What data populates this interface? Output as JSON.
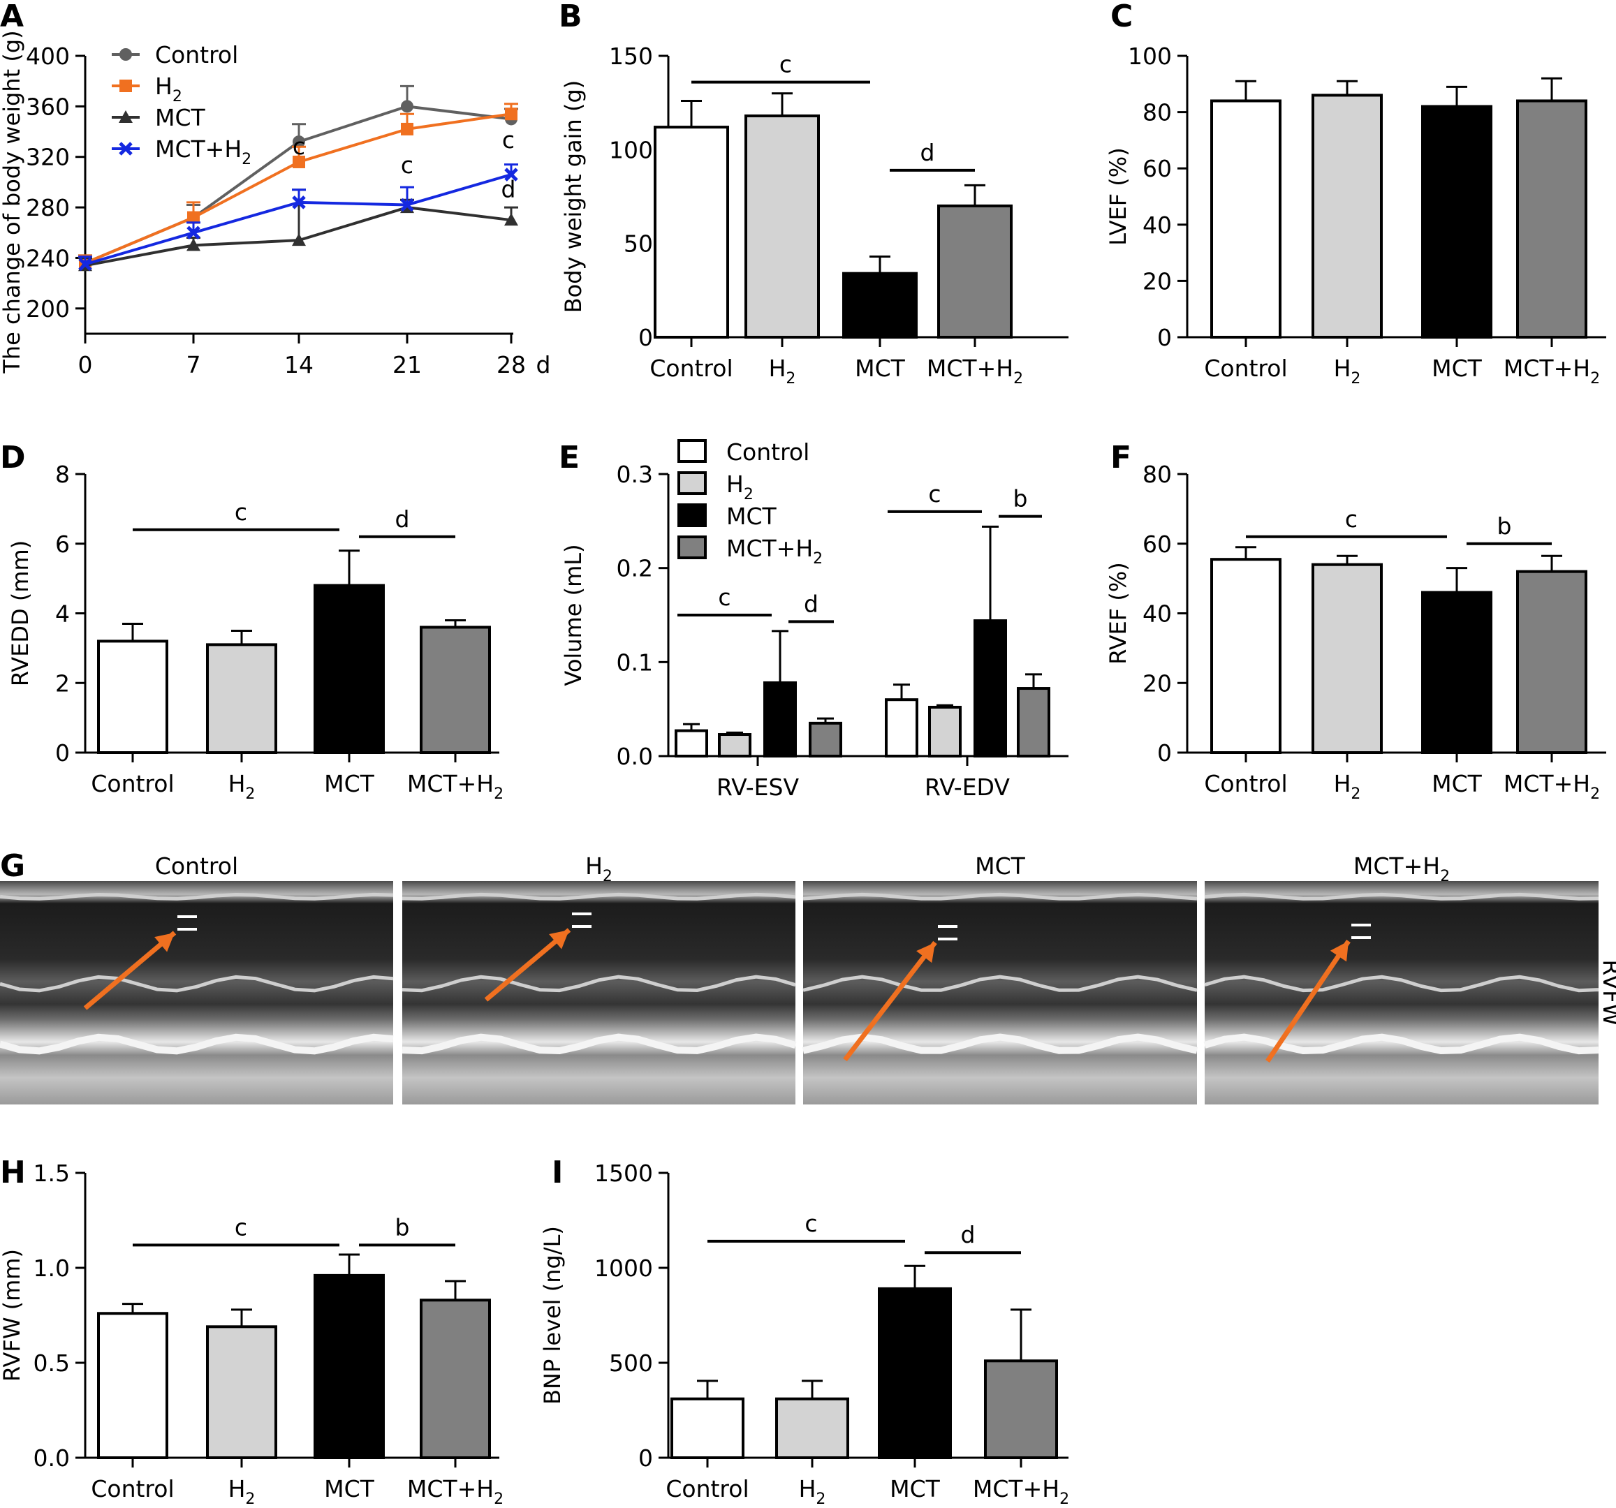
{
  "figure": {
    "groups": [
      "Control",
      "H2",
      "MCT",
      "MCT+H2"
    ],
    "panel_labels": [
      "A",
      "B",
      "C",
      "D",
      "E",
      "F",
      "G",
      "H",
      "I"
    ],
    "colors": {
      "Control": "#ffffff",
      "H2": "#d3d3d3",
      "MCT": "#000000",
      "MCT+H2": "#808080",
      "line_Control": "#606060",
      "line_H2": "#f07020",
      "line_MCT": "#303030",
      "line_MCT+H2": "#1428e0",
      "arrow": "#f07020"
    },
    "echo": {
      "titles": [
        "Control",
        "H2",
        "MCT",
        "MCT+H2"
      ],
      "side_label": "RVFW"
    }
  },
  "chart_data": [
    {
      "panel": "A",
      "type": "line",
      "x": [
        0,
        7,
        14,
        21,
        28
      ],
      "x_unit": "d",
      "xlim": [
        0,
        28
      ],
      "ylim": [
        180,
        400
      ],
      "yticks": [
        200,
        240,
        280,
        320,
        360,
        400
      ],
      "ylabel": "The change of body weight (g)",
      "legend": "top-left",
      "series": [
        {
          "name": "Control",
          "values": [
            236,
            272,
            332,
            360,
            350
          ],
          "err": [
            6,
            10,
            14,
            16,
            8
          ],
          "marker": "circle"
        },
        {
          "name": "H2",
          "values": [
            236,
            272,
            316,
            342,
            354
          ],
          "err": [
            6,
            12,
            12,
            12,
            8
          ],
          "marker": "square"
        },
        {
          "name": "MCT",
          "values": [
            234,
            250,
            254,
            280,
            270
          ],
          "err": [
            6,
            6,
            40,
            6,
            10
          ],
          "marker": "triangle"
        },
        {
          "name": "MCT+H2",
          "values": [
            235,
            260,
            284,
            282,
            306
          ],
          "err": [
            6,
            8,
            10,
            14,
            8
          ],
          "marker": "x"
        }
      ],
      "annotations": [
        {
          "text": "c",
          "x": 14,
          "y": 322
        },
        {
          "text": "c",
          "x": 21,
          "y": 307
        },
        {
          "text": "c",
          "x": 28,
          "y": 327
        },
        {
          "text": "d",
          "x": 28,
          "y": 288
        }
      ]
    },
    {
      "panel": "B",
      "type": "bar",
      "categories": [
        "Control",
        "H2",
        "MCT",
        "MCT+H2"
      ],
      "values": [
        112,
        118,
        34,
        70
      ],
      "err": [
        14,
        12,
        9,
        11
      ],
      "ylabel": "Body weight gain (g)",
      "ylim": [
        0,
        150
      ],
      "yticks": [
        0,
        50,
        100,
        150
      ],
      "brackets": [
        {
          "from": 0,
          "to": 2,
          "y": 136,
          "label": "c"
        },
        {
          "from": 2,
          "to": 3,
          "y": 89,
          "label": "d"
        }
      ]
    },
    {
      "panel": "C",
      "type": "bar",
      "categories": [
        "Control",
        "H2",
        "MCT",
        "MCT+H2"
      ],
      "values": [
        84,
        86,
        82,
        84
      ],
      "err": [
        7,
        5,
        7,
        8
      ],
      "ylabel": "LVEF (%)",
      "ylim": [
        0,
        100
      ],
      "yticks": [
        0,
        20,
        40,
        60,
        80,
        100
      ],
      "brackets": []
    },
    {
      "panel": "D",
      "type": "bar",
      "categories": [
        "Control",
        "H2",
        "MCT",
        "MCT+H2"
      ],
      "values": [
        3.2,
        3.1,
        4.8,
        3.6
      ],
      "err": [
        0.5,
        0.4,
        1.0,
        0.2
      ],
      "ylabel": "RVEDD (mm)",
      "ylim": [
        0,
        8
      ],
      "yticks": [
        0,
        2,
        4,
        6,
        8
      ],
      "brackets": [
        {
          "from": 0,
          "to": 2,
          "y": 6.4,
          "label": "c"
        },
        {
          "from": 2,
          "to": 3,
          "y": 6.2,
          "label": "d"
        }
      ]
    },
    {
      "panel": "E",
      "type": "bar",
      "categories": [
        "RV-ESV",
        "RV-EDV"
      ],
      "series": [
        {
          "name": "Control",
          "values": [
            0.027,
            0.06
          ],
          "err": [
            0.007,
            0.016
          ]
        },
        {
          "name": "H2",
          "values": [
            0.023,
            0.052
          ],
          "err": [
            0.002,
            0.002
          ]
        },
        {
          "name": "MCT",
          "values": [
            0.078,
            0.144
          ],
          "err": [
            0.055,
            0.1
          ]
        },
        {
          "name": "MCT+H2",
          "values": [
            0.035,
            0.072
          ],
          "err": [
            0.005,
            0.015
          ]
        }
      ],
      "ylabel": "Volume (mL)",
      "ylim": [
        0,
        0.3
      ],
      "yticks": [
        0.0,
        0.1,
        0.2,
        0.3
      ],
      "legend": "top-left",
      "brackets": [
        {
          "category": 0,
          "from": 0,
          "to": 2,
          "y": 0.15,
          "label": "c"
        },
        {
          "category": 0,
          "from": 2,
          "to": 3,
          "y": 0.143,
          "label": "d"
        },
        {
          "category": 1,
          "from": 0,
          "to": 2,
          "y": 0.26,
          "label": "c"
        },
        {
          "category": 1,
          "from": 2,
          "to": 3,
          "y": 0.255,
          "label": "b"
        }
      ]
    },
    {
      "panel": "F",
      "type": "bar",
      "categories": [
        "Control",
        "H2",
        "MCT",
        "MCT+H2"
      ],
      "values": [
        55.5,
        54,
        46,
        52
      ],
      "err": [
        3.5,
        2.5,
        7,
        4.5
      ],
      "ylabel": "RVEF (%)",
      "ylim": [
        0,
        80
      ],
      "yticks": [
        0,
        20,
        40,
        60,
        80
      ],
      "brackets": [
        {
          "from": 0,
          "to": 2,
          "y": 62,
          "label": "c"
        },
        {
          "from": 2,
          "to": 3,
          "y": 60,
          "label": "b"
        }
      ]
    },
    {
      "panel": "H",
      "type": "bar",
      "categories": [
        "Control",
        "H2",
        "MCT",
        "MCT+H2"
      ],
      "values": [
        0.76,
        0.69,
        0.96,
        0.83
      ],
      "err": [
        0.05,
        0.09,
        0.11,
        0.1
      ],
      "ylabel": "RVFW (mm)",
      "ylim": [
        0,
        1.5
      ],
      "yticks": [
        0.0,
        0.5,
        1.0,
        1.5
      ],
      "brackets": [
        {
          "from": 0,
          "to": 2,
          "y": 1.12,
          "label": "c"
        },
        {
          "from": 2,
          "to": 3,
          "y": 1.12,
          "label": "b"
        }
      ]
    },
    {
      "panel": "I",
      "type": "bar",
      "categories": [
        "Control",
        "H2",
        "MCT",
        "MCT+H2"
      ],
      "values": [
        310,
        310,
        890,
        510
      ],
      "err": [
        95,
        95,
        120,
        270
      ],
      "ylabel": "BNP level (ng/L)",
      "ylim": [
        0,
        1500
      ],
      "yticks": [
        0,
        500,
        1000,
        1500
      ],
      "brackets": [
        {
          "from": 0,
          "to": 2,
          "y": 1140,
          "label": "c"
        },
        {
          "from": 2,
          "to": 3,
          "y": 1080,
          "label": "d"
        }
      ]
    }
  ]
}
